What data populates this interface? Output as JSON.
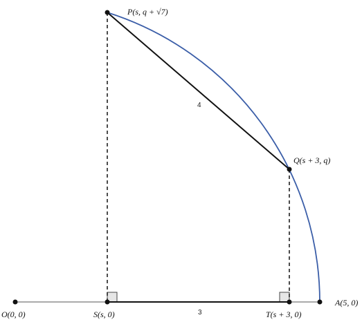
{
  "points": {
    "P": {
      "label": "P(s, q + √7)"
    },
    "Q": {
      "label": "Q(s + 3, q)"
    },
    "O": {
      "label": "O(0, 0)"
    },
    "S": {
      "label": "S(s, 0)"
    },
    "T": {
      "label": "T(s + 3, 0)"
    },
    "A": {
      "label": "A(5, 0)"
    }
  },
  "segments": {
    "PQ": {
      "label": "4"
    },
    "ST": {
      "label": "3"
    }
  }
}
